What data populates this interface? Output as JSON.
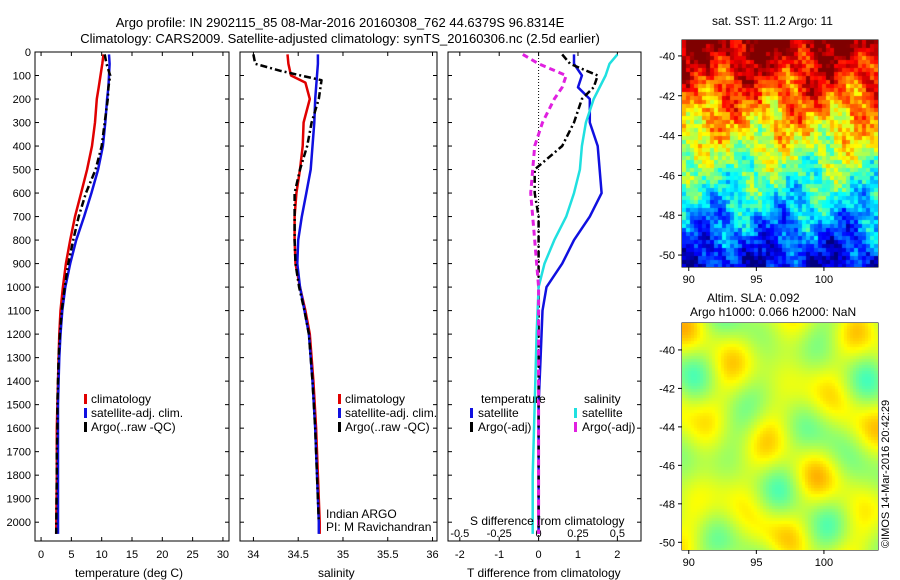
{
  "header": {
    "title_line1": "Argo profile: IN 2902115_85 08-Mar-2016 20160308_762 44.6379S 96.8314E",
    "title_line2": "Climatology: CARS2009. Satellite-adjusted climatology: synTS_20160306.nc (2.5d earlier)"
  },
  "colors": {
    "climatology": "#e00000",
    "satellite": "#1010e0",
    "argo": "#000000",
    "salinity_satellite": "#20e0e0",
    "salinity_argo": "#e020e0"
  },
  "credit": {
    "text": "©IMOS 14-Mar-2016 20:42:29"
  },
  "chart_data": [
    {
      "type": "line",
      "id": "temperature",
      "xlabel": "temperature (deg C)",
      "xlim": [
        -1,
        31
      ],
      "xticks": [
        0,
        5,
        10,
        15,
        20,
        25,
        30
      ],
      "ylim": [
        2080,
        0
      ],
      "yticks": [
        0,
        100,
        200,
        300,
        400,
        500,
        600,
        700,
        800,
        900,
        1000,
        1100,
        1200,
        1300,
        1400,
        1500,
        1600,
        1700,
        1800,
        1900,
        2000
      ],
      "legend": [
        "climatology",
        "satellite-adj. clim.",
        "Argo(..raw -QC)"
      ],
      "series": [
        {
          "name": "climatology",
          "style": "red",
          "x": [
            10.3,
            10.1,
            9.8,
            9.5,
            9.2,
            8.9,
            8.4,
            7.6,
            6.6,
            5.6,
            4.8,
            4.1,
            3.6,
            3.2,
            3.0,
            2.9,
            2.8,
            2.7,
            2.6,
            2.6,
            2.6,
            2.5
          ],
          "y": [
            10,
            50,
            100,
            150,
            200,
            300,
            400,
            500,
            600,
            700,
            800,
            900,
            1000,
            1100,
            1200,
            1300,
            1400,
            1500,
            1600,
            1700,
            1800,
            2050
          ]
        },
        {
          "name": "satellite-adj. clim.",
          "style": "blue",
          "x": [
            11.2,
            11.3,
            11.2,
            11.1,
            10.9,
            10.6,
            10.2,
            9.4,
            8.3,
            7.1,
            5.8,
            4.8,
            4.0,
            3.5,
            3.2,
            3.0,
            2.9,
            2.8,
            2.8,
            2.8,
            2.8,
            2.8
          ],
          "y": [
            10,
            50,
            100,
            150,
            200,
            300,
            400,
            500,
            600,
            700,
            800,
            900,
            1000,
            1100,
            1200,
            1300,
            1400,
            1500,
            1600,
            1700,
            1800,
            2050
          ]
        },
        {
          "name": "Argo(..raw -QC)",
          "style": "black-dashdot",
          "x": [
            10.5,
            10.8,
            11.4,
            11.1,
            11.0,
            10.5,
            10.0,
            9.0,
            7.4,
            6.2,
            5.3,
            4.5,
            3.9,
            3.4,
            3.1,
            2.9,
            2.8,
            2.7,
            2.7,
            2.6,
            2.6,
            2.5
          ],
          "y": [
            10,
            50,
            100,
            150,
            200,
            300,
            400,
            500,
            600,
            700,
            800,
            900,
            1000,
            1100,
            1200,
            1300,
            1400,
            1500,
            1600,
            1700,
            1800,
            2050
          ]
        }
      ]
    },
    {
      "type": "line",
      "id": "salinity",
      "xlabel": "salinity",
      "xlim": [
        33.85,
        36.05
      ],
      "xticks": [
        34,
        34.5,
        35,
        35.5,
        36
      ],
      "ylim": [
        2080,
        0
      ],
      "legend": [
        "climatology",
        "satellite-adj. clim.",
        "Argo(..raw -QC)"
      ],
      "annotation": [
        "Indian ARGO",
        "PI: M Ravichandran"
      ],
      "series": [
        {
          "name": "climatology",
          "style": "red",
          "x": [
            34.38,
            34.39,
            34.42,
            34.58,
            34.63,
            34.56,
            34.55,
            34.52,
            34.48,
            34.46,
            34.46,
            34.47,
            34.52,
            34.58,
            34.63,
            34.67,
            34.7,
            34.72,
            34.73,
            34.74,
            34.74
          ],
          "y": [
            10,
            50,
            100,
            130,
            200,
            300,
            400,
            500,
            600,
            700,
            800,
            900,
            1000,
            1100,
            1200,
            1400,
            1600,
            1800,
            1900,
            2000,
            2050
          ]
        },
        {
          "name": "satellite-adj. clim.",
          "style": "blue",
          "x": [
            34.72,
            34.72,
            34.71,
            34.7,
            34.69,
            34.68,
            34.66,
            34.64,
            34.59,
            34.54,
            34.5,
            34.49,
            34.52,
            34.57,
            34.62,
            34.66,
            34.69,
            34.71,
            34.72,
            34.73,
            34.73
          ],
          "y": [
            10,
            50,
            100,
            150,
            200,
            300,
            400,
            500,
            600,
            700,
            800,
            900,
            1000,
            1100,
            1200,
            1400,
            1600,
            1800,
            1900,
            2000,
            2050
          ]
        },
        {
          "name": "Argo(..raw -QC)",
          "style": "black-dashdot",
          "x": [
            34.0,
            34.02,
            34.3,
            34.76,
            34.73,
            34.65,
            34.6,
            34.52,
            34.46,
            34.46,
            34.46,
            34.47,
            34.51,
            34.57,
            34.62,
            34.66,
            34.69,
            34.71,
            34.72,
            34.73
          ],
          "y": [
            10,
            50,
            80,
            120,
            200,
            300,
            400,
            500,
            600,
            700,
            800,
            900,
            1000,
            1100,
            1200,
            1400,
            1600,
            1800,
            1900,
            2000
          ]
        }
      ]
    },
    {
      "type": "line",
      "id": "difference",
      "xlabel": "T difference from climatology",
      "xlabel_top": "S difference from climatology",
      "xlim": [
        -2.3,
        2.6
      ],
      "xticks": [
        -2,
        -1,
        0,
        1,
        2
      ],
      "xticks_top": [
        -0.5,
        -0.25,
        0,
        0.25,
        0.5
      ],
      "ylim": [
        2080,
        0
      ],
      "legend_headers": [
        "temperature",
        "salinity"
      ],
      "legend": [
        "satellite",
        "Argo(-adj)",
        "satellite",
        "Argo(-adj)"
      ],
      "series": [
        {
          "name": "satellite",
          "group": "temperature",
          "style": "blue",
          "x": [
            0.9,
            0.9,
            1.1,
            1.0,
            1.3,
            1.3,
            1.5,
            1.6,
            1.3,
            0.9,
            0.6,
            0.2,
            0.1,
            0.05,
            0.0,
            0.0,
            0.0,
            0.0,
            0.0
          ],
          "y": [
            10,
            50,
            100,
            150,
            200,
            300,
            400,
            600,
            700,
            800,
            900,
            1000,
            1100,
            1300,
            1500,
            1700,
            1800,
            1950,
            2050
          ]
        },
        {
          "name": "Argo(-adj)",
          "group": "temperature",
          "style": "black-dashdot",
          "x": [
            0.6,
            0.8,
            1.5,
            1.4,
            1.1,
            0.9,
            0.6,
            -0.1,
            -0.1,
            0.0,
            0.0,
            0.0,
            0.0,
            0.0,
            0.0,
            0.0
          ],
          "y": [
            10,
            50,
            100,
            150,
            200,
            300,
            400,
            500,
            600,
            700,
            900,
            1000,
            1200,
            1500,
            1800,
            2050
          ]
        },
        {
          "name": "satellite",
          "group": "salinity",
          "style": "cyan",
          "x": [
            2.0,
            1.8,
            1.7,
            1.4,
            1.2,
            1.1,
            1.05,
            0.9,
            0.7,
            0.4,
            0.15,
            0.0,
            -0.05,
            -0.1,
            -0.15,
            -0.15
          ],
          "y": [
            10,
            50,
            100,
            200,
            300,
            400,
            500,
            600,
            700,
            800,
            900,
            1000,
            1200,
            1500,
            1800,
            2050
          ]
        },
        {
          "name": "Argo(-adj)",
          "group": "salinity",
          "style": "magenta-dashed",
          "x": [
            -0.4,
            0.0,
            0.7,
            0.6,
            0.4,
            0.1,
            -0.1,
            -0.2,
            -0.1,
            0.0,
            0.0,
            0.0,
            0.0,
            0.0
          ],
          "y": [
            10,
            50,
            100,
            150,
            200,
            300,
            400,
            600,
            800,
            1000,
            1200,
            1500,
            1800,
            2050
          ]
        }
      ]
    },
    {
      "type": "heatmap",
      "id": "sst",
      "title": "sat. SST: 11.2 Argo: 11",
      "xlim": [
        89.5,
        104
      ],
      "xticks": [
        90,
        95,
        100
      ],
      "ylim": [
        -50.6,
        -39.2
      ],
      "yticks": [
        -40,
        -42,
        -44,
        -46,
        -48,
        -50
      ]
    },
    {
      "type": "heatmap",
      "id": "sla",
      "title_line1": "Altim. SLA: 0.092",
      "title_line2": "Argo h1000: 0.066 h2000: NaN",
      "xlim": [
        89.5,
        104
      ],
      "xticks": [
        90,
        95,
        100
      ],
      "ylim": [
        -50.4,
        -38.6
      ],
      "yticks": [
        -40,
        -42,
        -44,
        -46,
        -48,
        -50
      ]
    }
  ]
}
